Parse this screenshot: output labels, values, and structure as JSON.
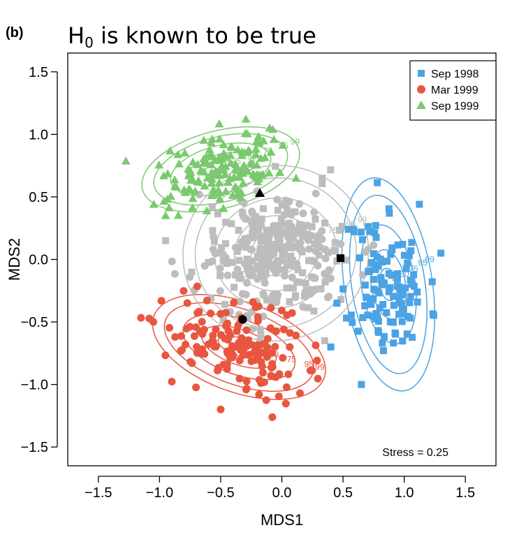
{
  "panel_label": "(b)",
  "title": {
    "h": "H",
    "sub": "0",
    "rest": " is known to be true"
  },
  "chart_data": {
    "type": "scatter",
    "xlabel": "MDS1",
    "ylabel": "MDS2",
    "xlim": [
      -1.75,
      1.75
    ],
    "ylim": [
      -1.65,
      1.65
    ],
    "xticks": [
      -1.5,
      -1.0,
      -0.5,
      0.0,
      0.5,
      1.0,
      1.5
    ],
    "yticks": [
      -1.5,
      -1.0,
      -0.5,
      0.0,
      0.5,
      1.0,
      1.5
    ],
    "xtick_labels": [
      "−1.5",
      "−1.0",
      "−0.5",
      "0.0",
      "0.5",
      "1.0",
      "1.5"
    ],
    "ytick_labels": [
      "−1.5",
      "−1.0",
      "−0.5",
      "0.0",
      "0.5",
      "1.0",
      "1.5"
    ],
    "grid": false,
    "legend_position": "top-right",
    "annotation": "Stress = 0.25",
    "contour_levels": [
      "25",
      "50",
      "75",
      "95",
      "99"
    ],
    "series": [
      {
        "name": "Sep 1998",
        "color": "#4BA3E3",
        "marker": "square",
        "center": [
          0.87,
          -0.2
        ],
        "sd": [
          0.15,
          0.3
        ],
        "rot": 0.15,
        "n": 120,
        "seed": 11,
        "extra_points": [
          [
            0.65,
            -1.0
          ],
          [
            1.3,
            0.05
          ],
          [
            0.4,
            -0.7
          ],
          [
            0.45,
            -0.35
          ]
        ],
        "contour_rx": [
          0.07,
          0.14,
          0.22,
          0.3,
          0.36
        ],
        "contour_ry": [
          0.13,
          0.28,
          0.48,
          0.72,
          0.86
        ]
      },
      {
        "name": "Mar 1999",
        "color": "#E8563F",
        "marker": "circle",
        "center": [
          -0.35,
          -0.7
        ],
        "sd": [
          0.28,
          0.16
        ],
        "rot": -0.35,
        "n": 150,
        "seed": 22,
        "extra_points": [
          [
            -0.5,
            -1.2
          ],
          [
            -1.05,
            -0.5
          ]
        ],
        "contour_rx": [
          0.18,
          0.32,
          0.48,
          0.64,
          0.74
        ],
        "contour_ry": [
          0.07,
          0.14,
          0.22,
          0.3,
          0.36
        ]
      },
      {
        "name": "Sep 1999",
        "color": "#7BC96F",
        "marker": "triangle",
        "center": [
          -0.5,
          0.72
        ],
        "sd": [
          0.25,
          0.13
        ],
        "rot": 0.25,
        "n": 150,
        "seed": 33,
        "extra_points": [
          [
            -0.95,
            0.35
          ],
          [
            -0.1,
            1.05
          ]
        ],
        "contour_rx": [
          0.14,
          0.28,
          0.42,
          0.56,
          0.66
        ],
        "contour_ry": [
          0.06,
          0.12,
          0.19,
          0.26,
          0.31
        ]
      },
      {
        "name": "",
        "color": "#BDBDBD",
        "marker": "mixed",
        "center": [
          -0.05,
          0.05
        ],
        "sd": [
          0.28,
          0.24
        ],
        "rot": 0.2,
        "n": 330,
        "seed": 44,
        "extra_points": [
          [
            0.35,
            -0.65
          ],
          [
            -0.95,
            0.15
          ],
          [
            0.33,
            0.65
          ]
        ],
        "contour_rx": [
          0.2,
          0.34,
          0.5,
          0.66,
          0.76
        ],
        "contour_ry": [
          0.18,
          0.3,
          0.44,
          0.6,
          0.7
        ]
      }
    ],
    "black_markers": [
      {
        "marker": "triangle",
        "x": -0.18,
        "y": 0.53
      },
      {
        "marker": "circle",
        "x": -0.32,
        "y": -0.48
      },
      {
        "marker": "square",
        "x": 0.48,
        "y": 0.01
      }
    ]
  }
}
